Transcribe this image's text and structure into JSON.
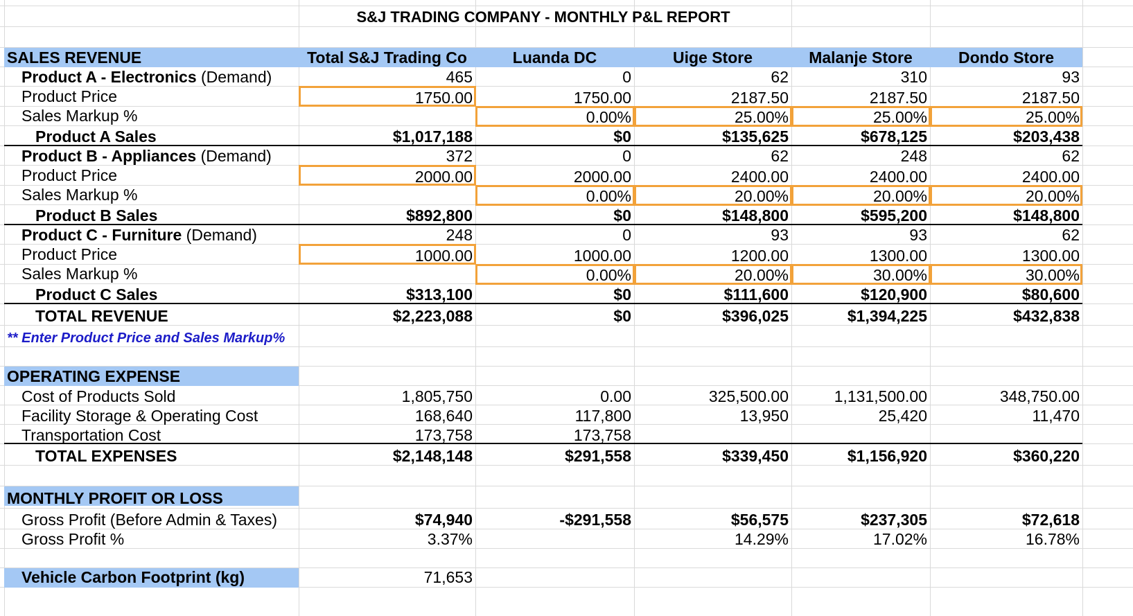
{
  "title": "S&J TRADING COMPANY - MONTHLY P&L REPORT",
  "colors": {
    "section_band": "#a4c8f4",
    "input_border": "#f2a23a",
    "note_text": "#1c1cc8"
  },
  "columns": [
    "Total S&J Trading Co",
    "Luanda DC",
    "Uige Store",
    "Malanje Store",
    "Dondo Store"
  ],
  "sales": {
    "header": "SALES REVENUE",
    "products": [
      {
        "name_bold": "Product A - Electronics",
        "name_suffix": " (Demand)",
        "demand": [
          "465",
          "0",
          "62",
          "310",
          "93"
        ],
        "price_label": "Product Price",
        "price": [
          "1750.00",
          "1750.00",
          "2187.50",
          "2187.50",
          "2187.50"
        ],
        "markup_label": "Sales Markup %",
        "markup": [
          "",
          "0.00%",
          "25.00%",
          "25.00%",
          "25.00%"
        ],
        "sales_label": "Product A Sales",
        "sales": [
          "$1,017,188",
          "$0",
          "$135,625",
          "$678,125",
          "$203,438"
        ]
      },
      {
        "name_bold": "Product B - Appliances",
        "name_suffix": " (Demand)",
        "demand": [
          "372",
          "0",
          "62",
          "248",
          "62"
        ],
        "price_label": "Product Price",
        "price": [
          "2000.00",
          "2000.00",
          "2400.00",
          "2400.00",
          "2400.00"
        ],
        "markup_label": "Sales Markup %",
        "markup": [
          "",
          "0.00%",
          "20.00%",
          "20.00%",
          "20.00%"
        ],
        "sales_label": "Product B Sales",
        "sales": [
          "$892,800",
          "$0",
          "$148,800",
          "$595,200",
          "$148,800"
        ]
      },
      {
        "name_bold": "Product C - Furniture",
        "name_suffix": " (Demand)",
        "demand": [
          "248",
          "0",
          "93",
          "93",
          "62"
        ],
        "price_label": "Product Price",
        "price": [
          "1000.00",
          "1000.00",
          "1200.00",
          "1300.00",
          "1300.00"
        ],
        "markup_label": "Sales Markup %",
        "markup": [
          "",
          "0.00%",
          "20.00%",
          "30.00%",
          "30.00%"
        ],
        "sales_label": "Product C Sales",
        "sales": [
          "$313,100",
          "$0",
          "$111,600",
          "$120,900",
          "$80,600"
        ]
      }
    ],
    "total_label": "TOTAL REVENUE",
    "total": [
      "$2,223,088",
      "$0",
      "$396,025",
      "$1,394,225",
      "$432,838"
    ],
    "note": "** Enter Product Price and Sales Markup%"
  },
  "expenses": {
    "header": "OPERATING EXPENSE",
    "rows": [
      {
        "label": "Cost of Products Sold",
        "values": [
          "1,805,750",
          "0.00",
          "325,500.00",
          "1,131,500.00",
          "348,750.00"
        ]
      },
      {
        "label": "Facility Storage & Operating Cost",
        "values": [
          "168,640",
          "117,800",
          "13,950",
          "25,420",
          "11,470"
        ]
      },
      {
        "label": "Transportation Cost",
        "values": [
          "173,758",
          "173,758",
          "",
          "",
          ""
        ]
      }
    ],
    "total_label": "TOTAL EXPENSES",
    "total": [
      "$2,148,148",
      "$291,558",
      "$339,450",
      "$1,156,920",
      "$360,220"
    ]
  },
  "profit": {
    "header": "MONTHLY PROFIT OR LOSS",
    "gross_label": "Gross Profit (Before Admin & Taxes)",
    "gross": [
      "$74,940",
      "-$291,558",
      "$56,575",
      "$237,305",
      "$72,618"
    ],
    "pct_label": "Gross Profit %",
    "pct": [
      "3.37%",
      "",
      "14.29%",
      "17.02%",
      "16.78%"
    ]
  },
  "carbon": {
    "label": "Vehicle Carbon Footprint (kg)",
    "value": "71,653"
  }
}
